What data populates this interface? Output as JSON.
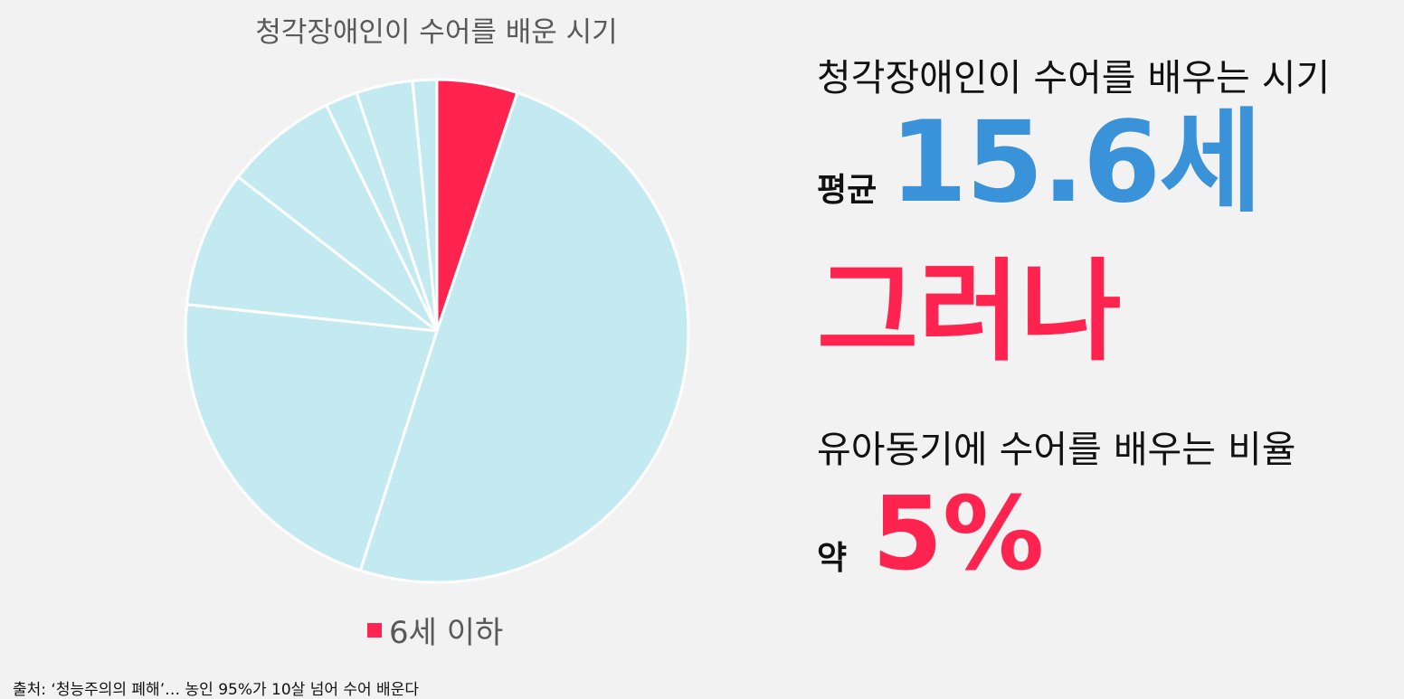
{
  "chart_data": {
    "type": "pie",
    "title": "청각장애인이 수어를 배운 시기",
    "highlight_color": "#ff2450",
    "base_color": "#c3e9f1",
    "slice_border_color": "#ffffff",
    "values": [
      5,
      48,
      21,
      8.5,
      7,
      2,
      3.5,
      1.5
    ],
    "highlighted_slice": 0,
    "legend": [
      {
        "label": "6세 이하",
        "color": "#ff2450"
      }
    ],
    "legend_position": "bottom"
  },
  "source_text": "출처: ‘청능주의의 폐해’… 농인 95%가 10살 넘어 수어 배운다",
  "panel": {
    "headline": "청각장애인이 수어를 배우는 시기",
    "avg_label": "평균",
    "avg_value": "15.6세",
    "avg_color": "#3a92d8",
    "however": "그러나",
    "accent_color": "#ff2450",
    "ratio_headline": "유아동기에 수어를 배우는 비율",
    "pct_label": "약",
    "pct_value": "5%"
  }
}
